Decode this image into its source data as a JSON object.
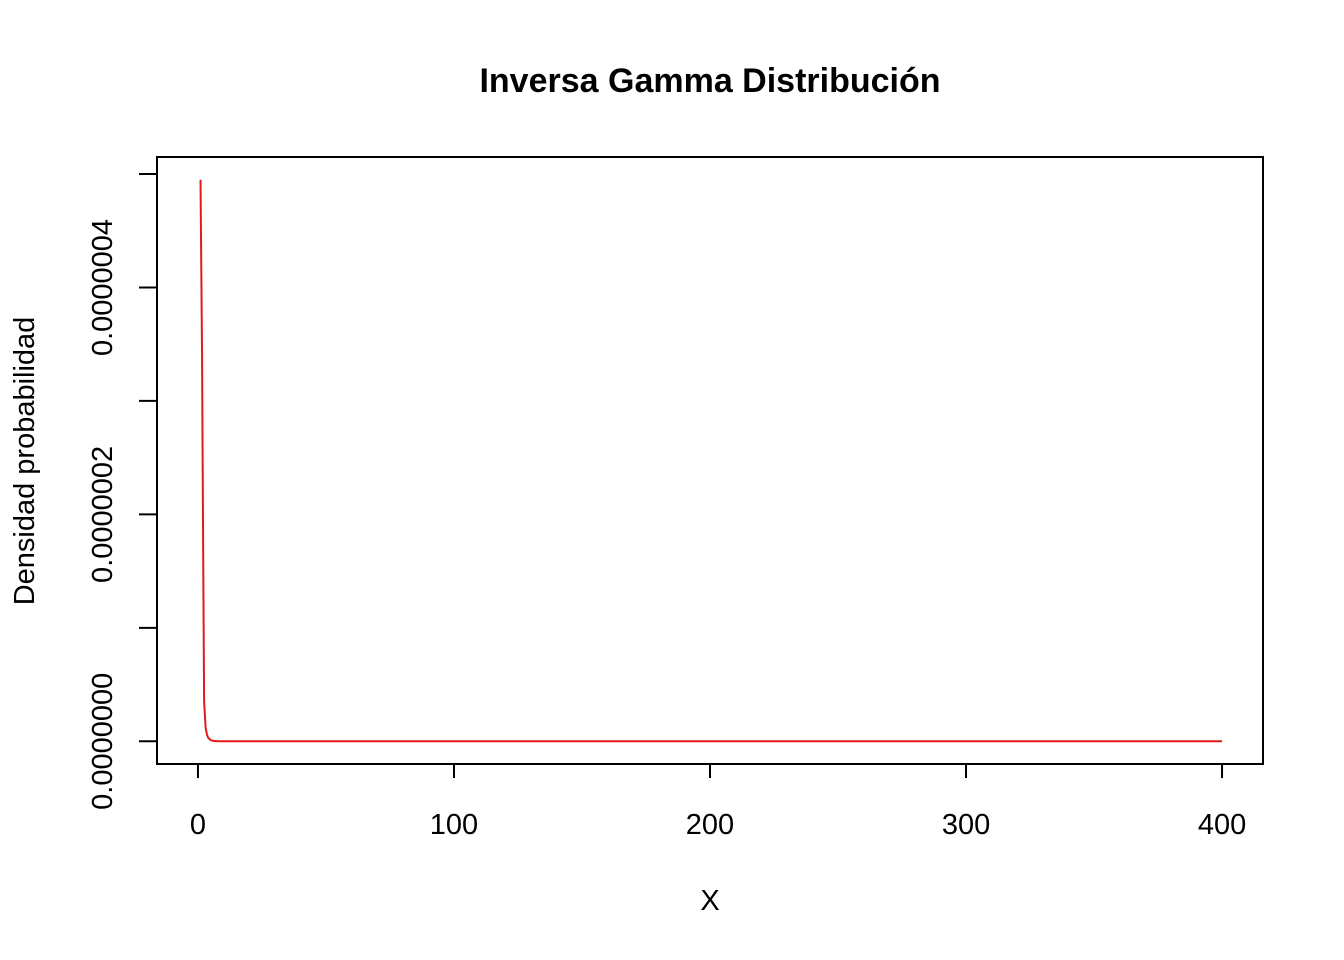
{
  "chart_data": {
    "type": "line",
    "title": "Inversa Gamma Distribución",
    "xlabel": "X",
    "ylabel": "Densidad probabilidad",
    "xlim": [
      -16,
      416
    ],
    "ylim": [
      -2e-08,
      5.15e-07
    ],
    "x_ticks": [
      {
        "value": 0,
        "label": "0"
      },
      {
        "value": 100,
        "label": "100"
      },
      {
        "value": 200,
        "label": "200"
      },
      {
        "value": 300,
        "label": "300"
      },
      {
        "value": 400,
        "label": "400"
      }
    ],
    "y_ticks": [
      {
        "value": 0,
        "label": "0.0000000"
      },
      {
        "value": 1e-07,
        "label": ""
      },
      {
        "value": 2e-07,
        "label": "0.0000002"
      },
      {
        "value": 3e-07,
        "label": ""
      },
      {
        "value": 4e-07,
        "label": "0.0000004"
      },
      {
        "value": 5e-07,
        "label": ""
      }
    ],
    "grid": false,
    "legend": "none",
    "series": [
      {
        "color": "#e31a1c",
        "x": [
          1,
          1.6,
          2,
          2.4,
          3,
          3.5,
          4,
          5,
          6,
          8,
          10,
          20,
          50,
          100,
          200,
          300,
          400
        ],
        "y": [
          4.95e-07,
          3.4e-07,
          1.8e-07,
          3.5e-08,
          1.2e-08,
          6e-09,
          3e-09,
          1e-09,
          4e-10,
          1e-10,
          3e-11,
          0,
          0,
          0,
          0,
          0,
          0
        ]
      }
    ]
  }
}
